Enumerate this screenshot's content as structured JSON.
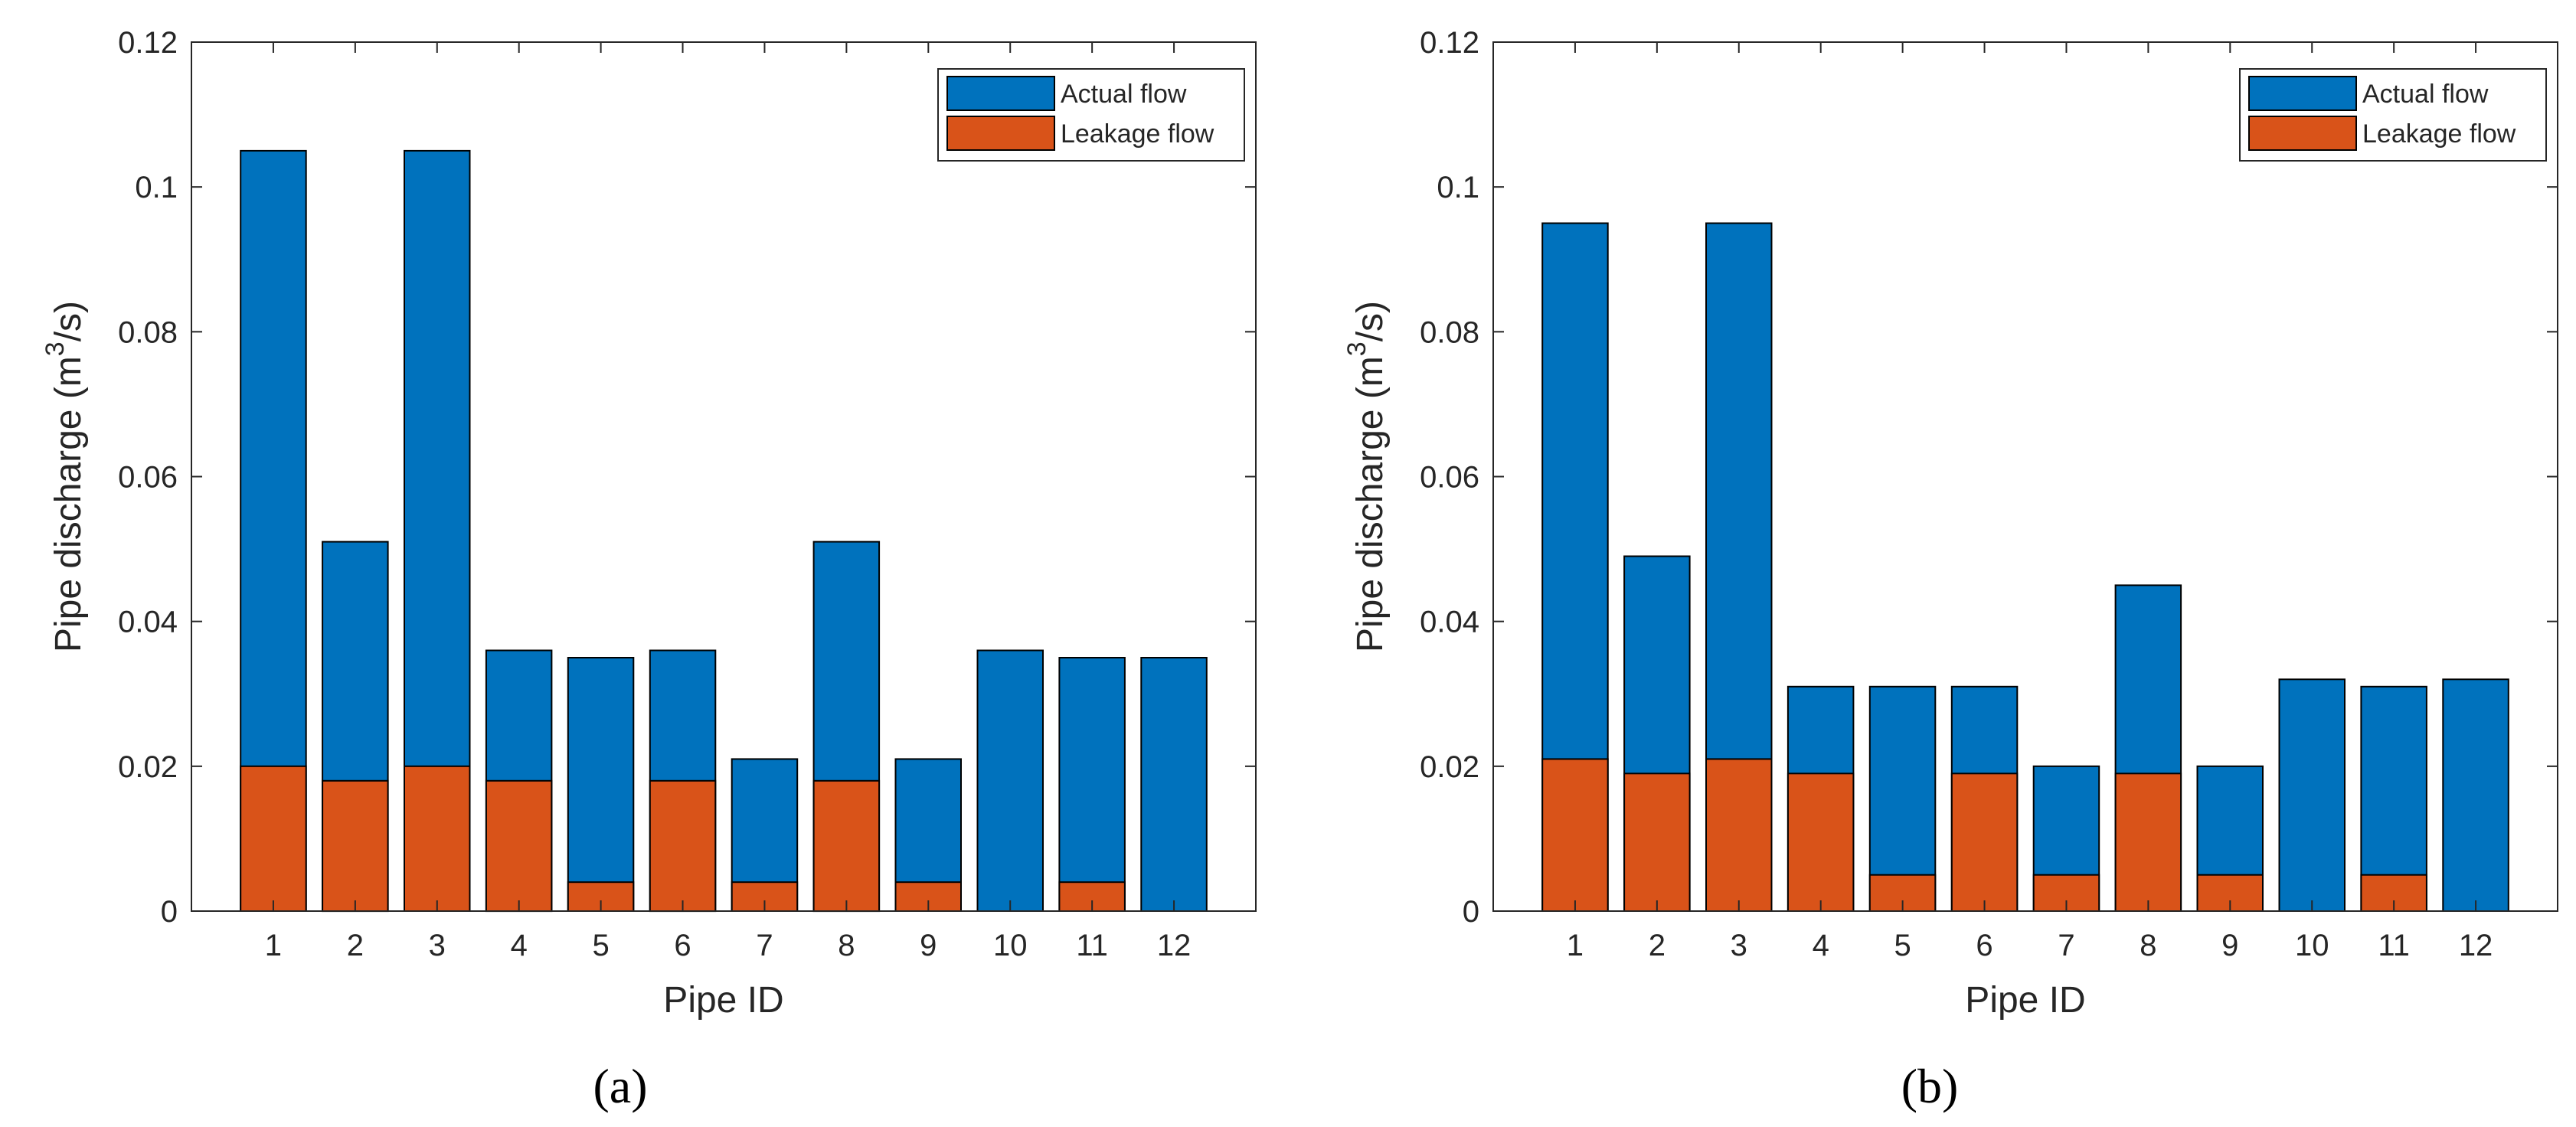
{
  "colors": {
    "actual": "#0072BD",
    "leakage": "#D95319",
    "axis": "#262626",
    "bar_edge": "#000000"
  },
  "chart_data": [
    {
      "type": "bar",
      "panel_label": "(a)",
      "categories": [
        "1",
        "2",
        "3",
        "4",
        "5",
        "6",
        "7",
        "8",
        "9",
        "10",
        "11",
        "12"
      ],
      "series": [
        {
          "name": "Actual flow",
          "values": [
            0.105,
            0.051,
            0.105,
            0.036,
            0.035,
            0.036,
            0.021,
            0.051,
            0.021,
            0.036,
            0.035,
            0.035
          ]
        },
        {
          "name": "Leakage flow",
          "values": [
            0.02,
            0.018,
            0.02,
            0.018,
            0.004,
            0.018,
            0.004,
            0.018,
            0.004,
            0.0,
            0.004,
            0.0
          ]
        }
      ],
      "xlabel": "Pipe ID",
      "ylabel": "Pipe discharge (m",
      "ylabel_sup": "3",
      "ylabel_tail": "/s)",
      "ylim": [
        0,
        0.12
      ],
      "yticks": [
        "0",
        "0.02",
        "0.04",
        "0.06",
        "0.08",
        "0.1",
        "0.12"
      ],
      "grid": false,
      "legend": "top-right",
      "overlay": true
    },
    {
      "type": "bar",
      "panel_label": "(b)",
      "categories": [
        "1",
        "2",
        "3",
        "4",
        "5",
        "6",
        "7",
        "8",
        "9",
        "10",
        "11",
        "12"
      ],
      "series": [
        {
          "name": "Actual flow",
          "values": [
            0.095,
            0.049,
            0.095,
            0.031,
            0.031,
            0.031,
            0.02,
            0.045,
            0.02,
            0.032,
            0.031,
            0.032
          ]
        },
        {
          "name": "Leakage flow",
          "values": [
            0.021,
            0.019,
            0.021,
            0.019,
            0.005,
            0.019,
            0.005,
            0.019,
            0.005,
            0.0,
            0.005,
            0.0
          ]
        }
      ],
      "xlabel": "Pipe ID",
      "ylabel": "Pipe discharge (m",
      "ylabel_sup": "3",
      "ylabel_tail": "/s)",
      "ylim": [
        0,
        0.12
      ],
      "yticks": [
        "0",
        "0.02",
        "0.04",
        "0.06",
        "0.08",
        "0.1",
        "0.12"
      ],
      "grid": false,
      "legend": "top-right",
      "overlay": true
    }
  ]
}
